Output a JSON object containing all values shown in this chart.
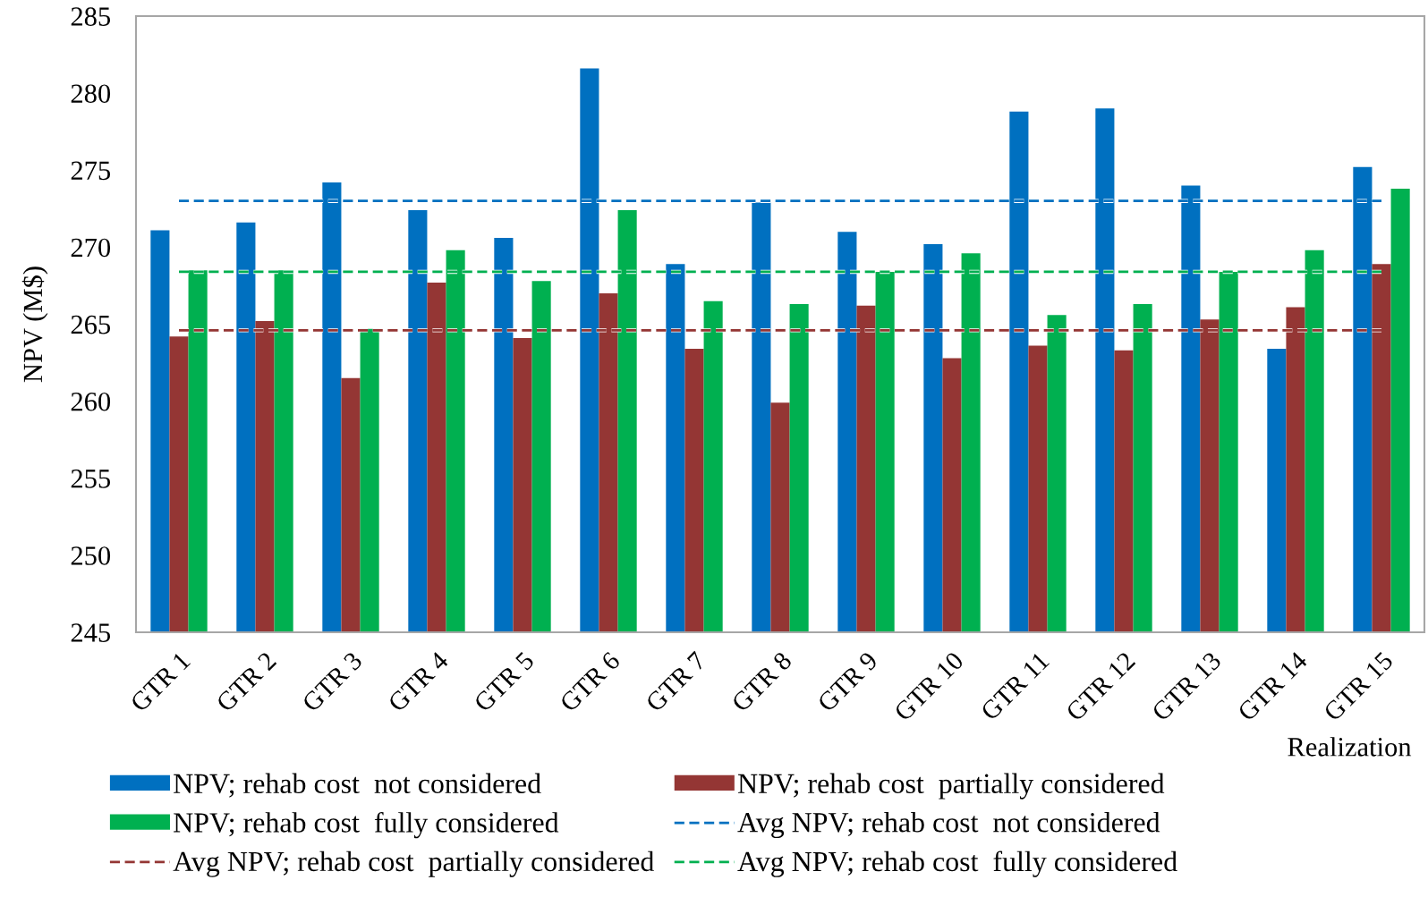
{
  "chart_data": {
    "type": "bar",
    "ylabel": "NPV (M$)",
    "xlabel": "Realization",
    "categories": [
      "GTR 1",
      "GTR 2",
      "GTR 3",
      "GTR 4",
      "GTR 5",
      "GTR 6",
      "GTR 7",
      "GTR 8",
      "GTR 9",
      "GTR 10",
      "GTR 11",
      "GTR 12",
      "GTR 13",
      "GTR 14",
      "GTR 15"
    ],
    "series": [
      {
        "name": "NPV; rehab cost  not considered",
        "color": "#0070c0",
        "values": [
          271.1,
          271.6,
          274.2,
          272.4,
          270.6,
          281.6,
          268.9,
          272.9,
          271.0,
          270.2,
          278.8,
          279.0,
          274.0,
          263.4,
          275.2
        ]
      },
      {
        "name": "NPV; rehab cost  partially considered",
        "color": "#943634",
        "values": [
          264.2,
          265.2,
          261.5,
          267.7,
          264.1,
          267.0,
          263.4,
          259.9,
          266.2,
          262.8,
          263.6,
          263.3,
          265.3,
          266.1,
          268.9
        ]
      },
      {
        "name": "NPV; rehab cost  fully considered",
        "color": "#00b050",
        "values": [
          268.5,
          268.5,
          264.7,
          269.8,
          267.8,
          272.4,
          266.5,
          266.3,
          268.4,
          269.6,
          265.6,
          266.3,
          268.4,
          269.8,
          273.8
        ]
      },
      {
        "name": "Avg NPV; rehab cost  not considered",
        "type": "line",
        "color": "#0070c0",
        "values": [
          273.0,
          273.0,
          273.0,
          273.0,
          273.0,
          273.0,
          273.0,
          273.0,
          273.0,
          273.0,
          273.0,
          273.0,
          273.0,
          273.0,
          273.0
        ]
      },
      {
        "name": "Avg NPV; rehab cost  partially considered",
        "type": "line",
        "color": "#943634",
        "values": [
          264.6,
          264.6,
          264.6,
          264.6,
          264.6,
          264.6,
          264.6,
          264.6,
          264.6,
          264.6,
          264.6,
          264.6,
          264.6,
          264.6,
          264.6
        ]
      },
      {
        "name": "Avg NPV; rehab cost  fully considered",
        "type": "line",
        "color": "#00b050",
        "values": [
          268.4,
          268.4,
          268.4,
          268.4,
          268.4,
          268.4,
          268.4,
          268.4,
          268.4,
          268.4,
          268.4,
          268.4,
          268.4,
          268.4,
          268.4
        ]
      }
    ],
    "ylim": [
      245,
      285
    ],
    "yticks": [
      245,
      250,
      255,
      260,
      265,
      270,
      275,
      280,
      285
    ],
    "line_style": "dashed",
    "legend": "bottom"
  }
}
